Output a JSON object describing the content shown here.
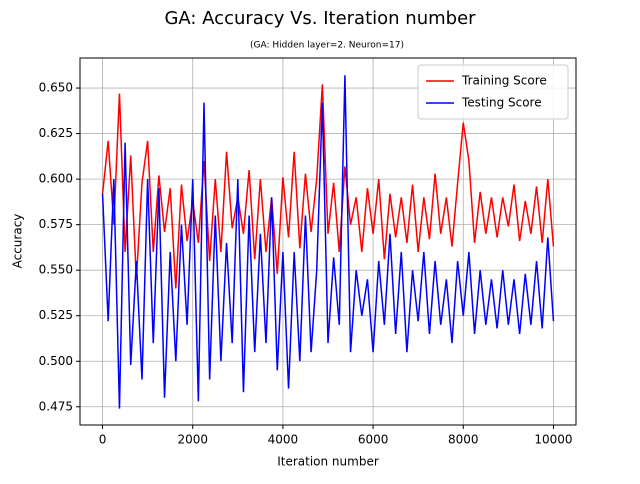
{
  "chart_data": {
    "type": "line",
    "title": "GA: Accuracy Vs. Iteration number",
    "subtitle": "(GA: Hidden layer=2. Neuron=17)",
    "x_label": "Iteration number",
    "y_label": "Accuracy",
    "x": [
      0,
      125,
      250,
      375,
      500,
      625,
      750,
      875,
      1000,
      1125,
      1250,
      1375,
      1500,
      1625,
      1750,
      1875,
      2000,
      2125,
      2250,
      2375,
      2500,
      2625,
      2750,
      2875,
      3000,
      3125,
      3250,
      3375,
      3500,
      3625,
      3750,
      3875,
      4000,
      4125,
      4250,
      4375,
      4500,
      4625,
      4750,
      4875,
      5000,
      5125,
      5250,
      5375,
      5500,
      5625,
      5750,
      5875,
      6000,
      6125,
      6250,
      6375,
      6500,
      6625,
      6750,
      6875,
      7000,
      7125,
      7250,
      7375,
      7500,
      7625,
      7750,
      7875,
      8000,
      8125,
      8250,
      8375,
      8500,
      8625,
      8750,
      8875,
      9000,
      9125,
      9250,
      9375,
      9500,
      9625,
      9750,
      9875,
      10000
    ],
    "series": [
      {
        "name": "Training Score",
        "color": "#ff0000",
        "values": [
          0.592,
          0.621,
          0.575,
          0.647,
          0.56,
          0.613,
          0.545,
          0.598,
          0.621,
          0.56,
          0.602,
          0.571,
          0.595,
          0.54,
          0.597,
          0.566,
          0.588,
          0.565,
          0.61,
          0.555,
          0.6,
          0.56,
          0.615,
          0.573,
          0.59,
          0.57,
          0.605,
          0.556,
          0.6,
          0.56,
          0.59,
          0.548,
          0.601,
          0.568,
          0.615,
          0.562,
          0.603,
          0.571,
          0.6,
          0.652,
          0.57,
          0.598,
          0.56,
          0.607,
          0.575,
          0.59,
          0.56,
          0.595,
          0.57,
          0.6,
          0.556,
          0.592,
          0.568,
          0.59,
          0.565,
          0.597,
          0.56,
          0.59,
          0.567,
          0.603,
          0.57,
          0.59,
          0.563,
          0.598,
          0.631,
          0.61,
          0.565,
          0.593,
          0.57,
          0.59,
          0.568,
          0.59,
          0.574,
          0.597,
          0.566,
          0.588,
          0.57,
          0.596,
          0.565,
          0.6,
          0.563
        ]
      },
      {
        "name": "Testing Score",
        "color": "#0000ff",
        "values": [
          0.592,
          0.522,
          0.6,
          0.474,
          0.62,
          0.498,
          0.555,
          0.49,
          0.6,
          0.51,
          0.595,
          0.48,
          0.56,
          0.5,
          0.575,
          0.52,
          0.6,
          0.478,
          0.642,
          0.49,
          0.58,
          0.5,
          0.565,
          0.51,
          0.6,
          0.483,
          0.58,
          0.505,
          0.57,
          0.51,
          0.59,
          0.495,
          0.56,
          0.485,
          0.56,
          0.5,
          0.58,
          0.505,
          0.55,
          0.642,
          0.51,
          0.557,
          0.52,
          0.657,
          0.505,
          0.55,
          0.525,
          0.545,
          0.505,
          0.555,
          0.52,
          0.57,
          0.515,
          0.56,
          0.505,
          0.55,
          0.522,
          0.56,
          0.515,
          0.555,
          0.52,
          0.545,
          0.51,
          0.555,
          0.525,
          0.56,
          0.515,
          0.55,
          0.52,
          0.545,
          0.518,
          0.55,
          0.52,
          0.545,
          0.515,
          0.548,
          0.52,
          0.555,
          0.518,
          0.568,
          0.522
        ]
      }
    ],
    "xlim": [
      -500,
      10500
    ],
    "ylim": [
      0.465,
      0.6665
    ],
    "xticks": [
      0,
      2000,
      4000,
      6000,
      8000,
      10000
    ],
    "yticks": [
      0.475,
      {
        "value": 0.5,
        "label": "0.500"
      },
      0.525,
      {
        "value": 0.55,
        "label": "0.550"
      },
      0.575,
      {
        "value": 0.6,
        "label": "0.600"
      },
      0.625,
      {
        "value": 0.65,
        "label": "0.650"
      }
    ],
    "grid": true,
    "legend": "upper right"
  }
}
